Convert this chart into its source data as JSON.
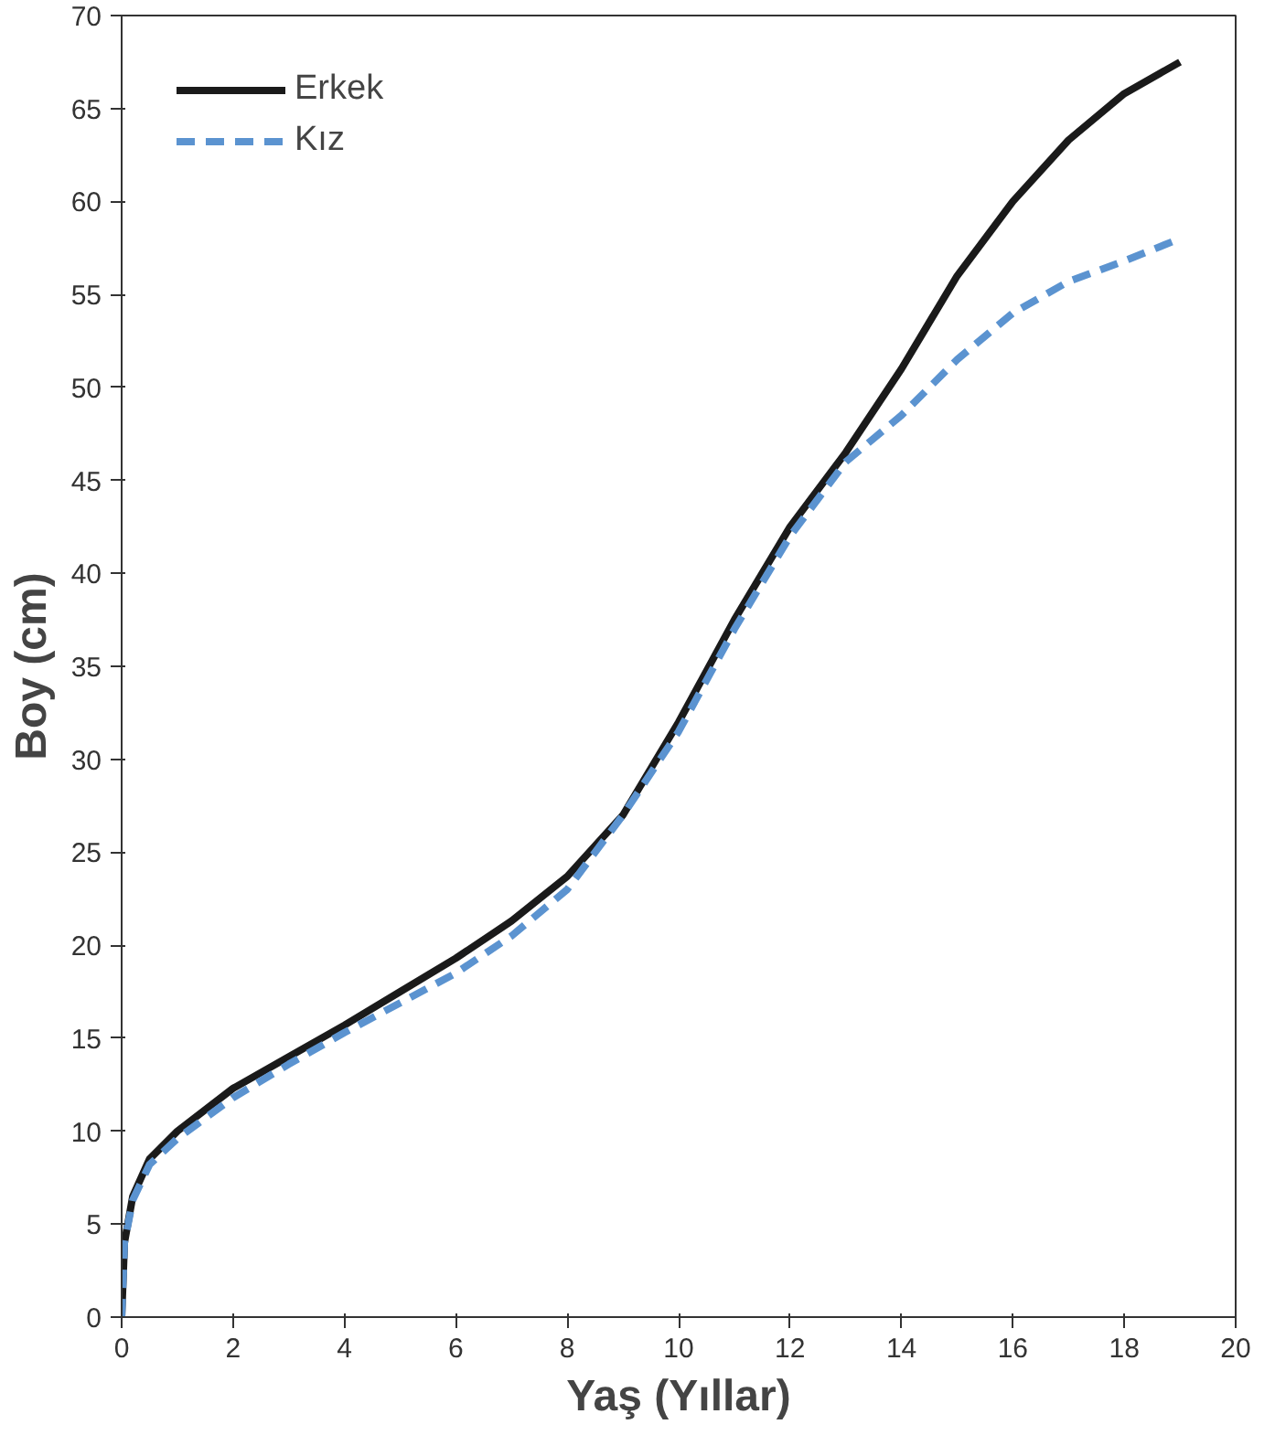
{
  "chart_data": {
    "type": "line",
    "xlabel": "Yaş (Yıllar)",
    "ylabel": "Boy (cm)",
    "x": [
      0,
      0.05,
      0.2,
      0.5,
      1,
      2,
      3,
      4,
      5,
      6,
      7,
      8,
      9,
      10,
      11,
      12,
      13,
      14,
      15,
      16,
      17,
      18,
      19
    ],
    "series": [
      {
        "name": "Erkek",
        "color": "#1a1a1a",
        "line_style": "solid",
        "values": [
          0,
          4,
          6.5,
          8.5,
          10,
          12.3,
          14,
          15.7,
          17.5,
          19.3,
          21.3,
          23.7,
          27,
          32,
          37.5,
          42.5,
          46.5,
          51,
          56,
          60,
          63.3,
          65.8,
          67.5
        ]
      },
      {
        "name": "Kız",
        "color": "#5b93d0",
        "line_style": "dashed",
        "values": [
          0,
          4,
          6.3,
          8.2,
          9.6,
          11.8,
          13.6,
          15.3,
          16.9,
          18.5,
          20.5,
          23,
          27,
          31.5,
          37,
          42,
          46,
          48.5,
          51.5,
          54,
          55.7,
          56.8,
          58
        ]
      }
    ],
    "xlim": [
      0,
      20
    ],
    "ylim": [
      0,
      70
    ],
    "xticks": [
      0,
      2,
      4,
      6,
      8,
      10,
      12,
      14,
      16,
      18,
      20
    ],
    "yticks": [
      0,
      5,
      10,
      15,
      20,
      25,
      30,
      35,
      40,
      45,
      50,
      55,
      60,
      65,
      70
    ],
    "grid": false,
    "legend": "top left",
    "marker": "none"
  }
}
